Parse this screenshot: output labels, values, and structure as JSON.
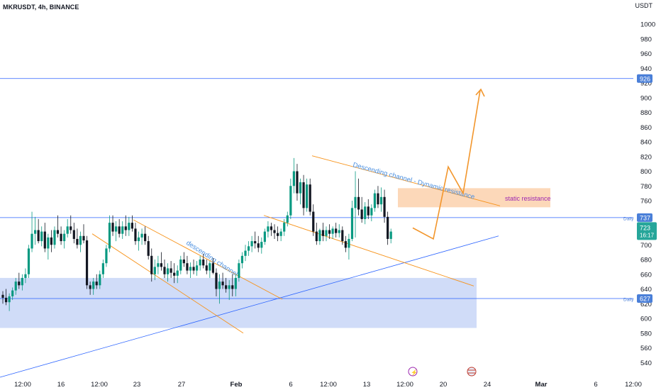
{
  "header": {
    "symbol_line": "MKRUSDT, 4h, BINANCE",
    "currency": "USDT"
  },
  "colors": {
    "up": "#089981",
    "down": "#131722",
    "blue_line": "#2962ff",
    "channel": "#f7931a",
    "zone_blue": "#c8d6f7",
    "zone_orange": "#fbd1ad",
    "price_tag": "#26a69a",
    "level_tag": "#4a7fd8",
    "resistance_text": "#9c27b0"
  },
  "chart_data": {
    "type": "candlestick",
    "title": "MKRUSDT, 4h, BINANCE",
    "y_unit": "USDT",
    "ylim": [
      520,
      1040
    ],
    "y_ticks": [
      540,
      560,
      580,
      600,
      620,
      640,
      660,
      680,
      700,
      720,
      740,
      760,
      780,
      800,
      820,
      840,
      860,
      880,
      900,
      920,
      940,
      960,
      980,
      1000
    ],
    "x_ticks": [
      "12:00",
      "16",
      "12:00",
      "23",
      "27",
      "Feb",
      "6",
      "12:00",
      "13",
      "12:00",
      "20",
      "24",
      "Mar",
      "6",
      "12:00"
    ],
    "current_price": {
      "value": "723",
      "countdown": "16:17"
    },
    "horizontal_levels": [
      {
        "value": 926,
        "label": "926",
        "tag": ""
      },
      {
        "value": 737,
        "label": "737",
        "tag": "Daily"
      },
      {
        "value": 627,
        "label": "627",
        "tag": "Daily"
      }
    ],
    "annotations": {
      "channel_1": "descending channel",
      "channel_2": "Descending channel - Dynamic resistance",
      "zone": "static resistance"
    },
    "zones": [
      {
        "name": "support-zone",
        "y_top": 655,
        "y_bottom": 587
      },
      {
        "name": "static-resistance-zone",
        "y_top": 777,
        "y_bottom": 751
      }
    ],
    "candles": [
      [
        632,
        637,
        620,
        628
      ],
      [
        628,
        640,
        618,
        622
      ],
      [
        622,
        634,
        610,
        630
      ],
      [
        630,
        642,
        625,
        638
      ],
      [
        638,
        655,
        632,
        650
      ],
      [
        650,
        662,
        640,
        645
      ],
      [
        645,
        660,
        638,
        655
      ],
      [
        655,
        668,
        648,
        660
      ],
      [
        660,
        700,
        655,
        695
      ],
      [
        695,
        745,
        690,
        715
      ],
      [
        715,
        738,
        700,
        720
      ],
      [
        720,
        735,
        702,
        705
      ],
      [
        705,
        725,
        698,
        718
      ],
      [
        718,
        730,
        690,
        695
      ],
      [
        695,
        715,
        680,
        710
      ],
      [
        710,
        720,
        690,
        700
      ],
      [
        700,
        725,
        695,
        720
      ],
      [
        720,
        740,
        710,
        715
      ],
      [
        715,
        725,
        700,
        705
      ],
      [
        705,
        720,
        695,
        715
      ],
      [
        715,
        735,
        710,
        725
      ],
      [
        725,
        740,
        715,
        720
      ],
      [
        720,
        730,
        702,
        708
      ],
      [
        708,
        722,
        695,
        700
      ],
      [
        700,
        718,
        690,
        712
      ],
      [
        712,
        728,
        702,
        706
      ],
      [
        706,
        712,
        640,
        645
      ],
      [
        645,
        650,
        632,
        640
      ],
      [
        640,
        655,
        632,
        650
      ],
      [
        650,
        660,
        640,
        645
      ],
      [
        645,
        665,
        640,
        660
      ],
      [
        660,
        680,
        655,
        675
      ],
      [
        675,
        700,
        670,
        695
      ],
      [
        695,
        740,
        690,
        730
      ],
      [
        730,
        740,
        712,
        718
      ],
      [
        718,
        732,
        705,
        725
      ],
      [
        725,
        735,
        710,
        715
      ],
      [
        715,
        732,
        708,
        725
      ],
      [
        725,
        740,
        712,
        720
      ],
      [
        720,
        738,
        712,
        730
      ],
      [
        730,
        740,
        718,
        722
      ],
      [
        722,
        730,
        700,
        705
      ],
      [
        705,
        718,
        692,
        710
      ],
      [
        710,
        722,
        700,
        715
      ],
      [
        715,
        725,
        700,
        705
      ],
      [
        705,
        712,
        680,
        685
      ],
      [
        685,
        695,
        650,
        660
      ],
      [
        660,
        680,
        652,
        670
      ],
      [
        670,
        685,
        660,
        675
      ],
      [
        675,
        690,
        665,
        670
      ],
      [
        670,
        680,
        655,
        660
      ],
      [
        660,
        675,
        650,
        668
      ],
      [
        668,
        678,
        655,
        662
      ],
      [
        662,
        675,
        648,
        658
      ],
      [
        658,
        672,
        648,
        665
      ],
      [
        665,
        685,
        660,
        680
      ],
      [
        680,
        690,
        670,
        675
      ],
      [
        675,
        685,
        660,
        665
      ],
      [
        665,
        676,
        655,
        670
      ],
      [
        670,
        680,
        660,
        665
      ],
      [
        665,
        678,
        658,
        672
      ],
      [
        672,
        685,
        665,
        680
      ],
      [
        680,
        688,
        668,
        672
      ],
      [
        672,
        680,
        660,
        665
      ],
      [
        665,
        678,
        655,
        675
      ],
      [
        675,
        682,
        660,
        662
      ],
      [
        662,
        668,
        630,
        640
      ],
      [
        640,
        660,
        620,
        650
      ],
      [
        650,
        662,
        640,
        645
      ],
      [
        645,
        655,
        635,
        640
      ],
      [
        640,
        652,
        625,
        645
      ],
      [
        645,
        660,
        630,
        640
      ],
      [
        640,
        660,
        630,
        655
      ],
      [
        655,
        680,
        650,
        675
      ],
      [
        675,
        690,
        668,
        685
      ],
      [
        685,
        700,
        678,
        692
      ],
      [
        692,
        705,
        685,
        698
      ],
      [
        698,
        712,
        690,
        705
      ],
      [
        705,
        718,
        695,
        702
      ],
      [
        702,
        712,
        690,
        696
      ],
      [
        696,
        710,
        688,
        704
      ],
      [
        704,
        722,
        700,
        718
      ],
      [
        718,
        732,
        710,
        725
      ],
      [
        725,
        730,
        712,
        720
      ],
      [
        720,
        728,
        708,
        716
      ],
      [
        716,
        725,
        705,
        712
      ],
      [
        712,
        722,
        705,
        718
      ],
      [
        718,
        735,
        712,
        730
      ],
      [
        730,
        745,
        725,
        740
      ],
      [
        740,
        790,
        735,
        780
      ],
      [
        780,
        818,
        770,
        800
      ],
      [
        800,
        810,
        760,
        770
      ],
      [
        770,
        790,
        755,
        785
      ],
      [
        785,
        795,
        740,
        750
      ],
      [
        750,
        790,
        745,
        782
      ],
      [
        782,
        790,
        740,
        745
      ],
      [
        745,
        755,
        712,
        718
      ],
      [
        718,
        730,
        700,
        705
      ],
      [
        705,
        722,
        700,
        720
      ],
      [
        720,
        730,
        705,
        712
      ],
      [
        712,
        725,
        705,
        720
      ],
      [
        720,
        728,
        708,
        715
      ],
      [
        715,
        725,
        708,
        722
      ],
      [
        722,
        730,
        710,
        716
      ],
      [
        716,
        728,
        710,
        720
      ],
      [
        720,
        725,
        700,
        705
      ],
      [
        705,
        712,
        690,
        696
      ],
      [
        696,
        715,
        680,
        708
      ],
      [
        708,
        760,
        705,
        750
      ],
      [
        750,
        800,
        710,
        765
      ],
      [
        765,
        790,
        740,
        748
      ],
      [
        748,
        765,
        730,
        735
      ],
      [
        735,
        758,
        728,
        752
      ],
      [
        752,
        762,
        735,
        740
      ],
      [
        740,
        755,
        732,
        750
      ],
      [
        750,
        775,
        745,
        770
      ],
      [
        770,
        780,
        750,
        755
      ],
      [
        755,
        778,
        745,
        765
      ],
      [
        765,
        775,
        730,
        738
      ],
      [
        738,
        745,
        700,
        708
      ],
      [
        708,
        722,
        702,
        718
      ]
    ]
  }
}
